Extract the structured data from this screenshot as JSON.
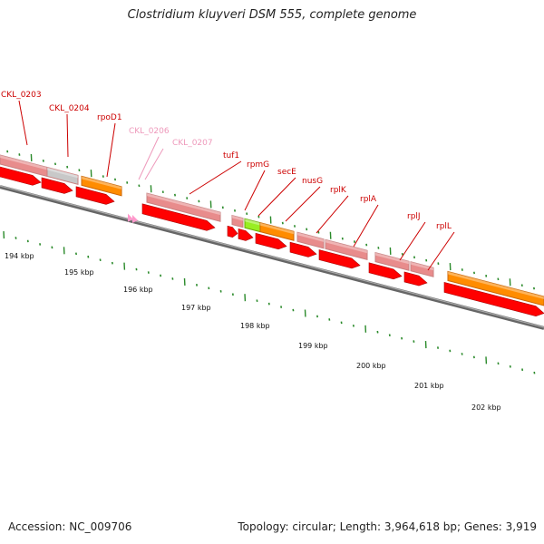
{
  "title": "Clostridium kluyveri DSM 555, complete genome",
  "footer": {
    "accession": "Accession: NC_009706",
    "topology": "Topology: circular; Length: 3,964,618 bp; Genes: 3,919"
  },
  "ruler": [
    "194 kbp",
    "195 kbp",
    "196 kbp",
    "197 kbp",
    "198 kbp",
    "199 kbp",
    "200 kbp",
    "201 kbp",
    "202 kbp"
  ],
  "gene_labels": [
    "CKL_0203",
    "CKL_0204",
    "rpoD1",
    "CKL_0206",
    "CKL_0207",
    "tuf1",
    "rpmG",
    "secE",
    "nusG",
    "rplK",
    "rplA",
    "rplJ",
    "rplL"
  ],
  "colors": {
    "cds": "#ff0000",
    "gene": "#e88c8c",
    "gene_dark": "#c06060",
    "pseudo": "#c8c8c8",
    "orange": "#ff8c00",
    "green": "#99ee22",
    "rna": "#ff99cc",
    "label": "#cc0000",
    "label_light": "#ee99bb",
    "tick": "#2a8a2a",
    "backbone": "#888888"
  }
}
